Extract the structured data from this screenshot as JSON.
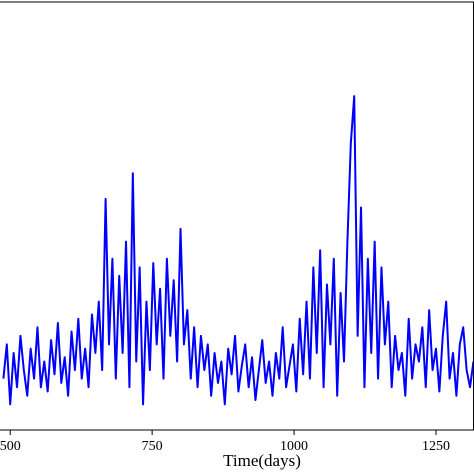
{
  "chart_data": {
    "type": "line",
    "xlabel": "Time(days)",
    "x": [
      488,
      494,
      500,
      506,
      512,
      518,
      524,
      530,
      536,
      542,
      548,
      554,
      560,
      566,
      572,
      578,
      584,
      590,
      596,
      602,
      608,
      614,
      620,
      626,
      632,
      638,
      644,
      650,
      656,
      662,
      668,
      674,
      680,
      686,
      692,
      698,
      704,
      710,
      716,
      722,
      728,
      734,
      740,
      746,
      752,
      758,
      764,
      770,
      776,
      782,
      788,
      794,
      800,
      806,
      812,
      818,
      824,
      830,
      836,
      842,
      848,
      854,
      860,
      866,
      872,
      878,
      884,
      890,
      896,
      902,
      908,
      914,
      920,
      926,
      932,
      938,
      944,
      950,
      956,
      962,
      968,
      974,
      980,
      986,
      992,
      998,
      1004,
      1010,
      1016,
      1022,
      1028,
      1034,
      1040,
      1046,
      1052,
      1058,
      1064,
      1070,
      1076,
      1082,
      1088,
      1094,
      1100,
      1106,
      1112,
      1118,
      1124,
      1130,
      1136,
      1142,
      1148,
      1154,
      1160,
      1166,
      1172,
      1178,
      1184,
      1190,
      1196,
      1202,
      1208,
      1214,
      1220,
      1226,
      1232,
      1238,
      1244,
      1250,
      1256,
      1262,
      1268,
      1274,
      1280,
      1286,
      1292,
      1298,
      1304,
      1310,
      1316
    ],
    "values": [
      12,
      20,
      6,
      18,
      10,
      22,
      14,
      8,
      19,
      12,
      24,
      10,
      16,
      9,
      21,
      13,
      25,
      11,
      17,
      8,
      23,
      14,
      26,
      12,
      19,
      10,
      27,
      18,
      30,
      14,
      54,
      20,
      40,
      12,
      36,
      18,
      44,
      10,
      60,
      16,
      38,
      6,
      30,
      14,
      39,
      20,
      33,
      12,
      40,
      22,
      35,
      16,
      47,
      20,
      28,
      12,
      24,
      10,
      22,
      14,
      20,
      8,
      18,
      11,
      16,
      6,
      19,
      13,
      22,
      9,
      15,
      20,
      10,
      17,
      7,
      14,
      21,
      11,
      16,
      8,
      18,
      12,
      24,
      10,
      15,
      20,
      9,
      26,
      13,
      30,
      12,
      38,
      18,
      42,
      10,
      34,
      20,
      40,
      8,
      32,
      16,
      44,
      67,
      78,
      22,
      52,
      10,
      40,
      18,
      44,
      12,
      38,
      20,
      30,
      10,
      22,
      14,
      18,
      8,
      26,
      12,
      20,
      16,
      24,
      10,
      28,
      14,
      19,
      9,
      22,
      30,
      12,
      18,
      8,
      20,
      24,
      14,
      10,
      16
    ],
    "color": "#0000ff",
    "xlim": [
      482,
      1317
    ],
    "xticks": [
      500,
      750,
      1000,
      1250
    ],
    "ylim": [
      0,
      100
    ]
  }
}
